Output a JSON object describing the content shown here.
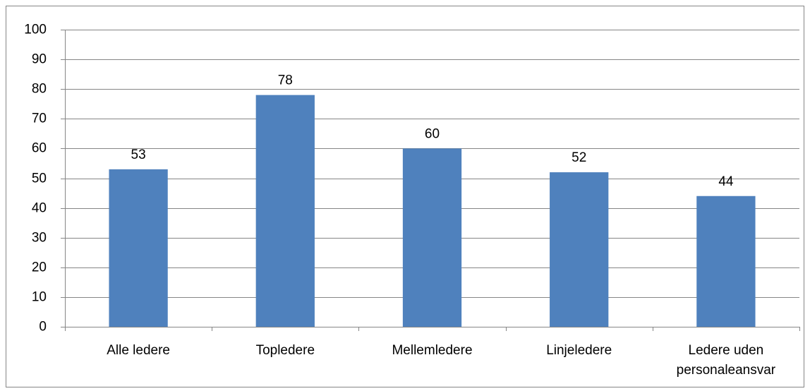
{
  "chart_data": {
    "type": "bar",
    "categories": [
      "Alle ledere",
      "Topledere",
      "Mellemledere",
      "Linjeledere",
      "Ledere uden personaleansvar"
    ],
    "values": [
      53,
      78,
      60,
      52,
      44
    ],
    "color": "#4f81bd",
    "ylim": [
      0,
      100
    ],
    "yticks": [
      0,
      10,
      20,
      30,
      40,
      50,
      60,
      70,
      80,
      90,
      100
    ],
    "grid": true
  }
}
